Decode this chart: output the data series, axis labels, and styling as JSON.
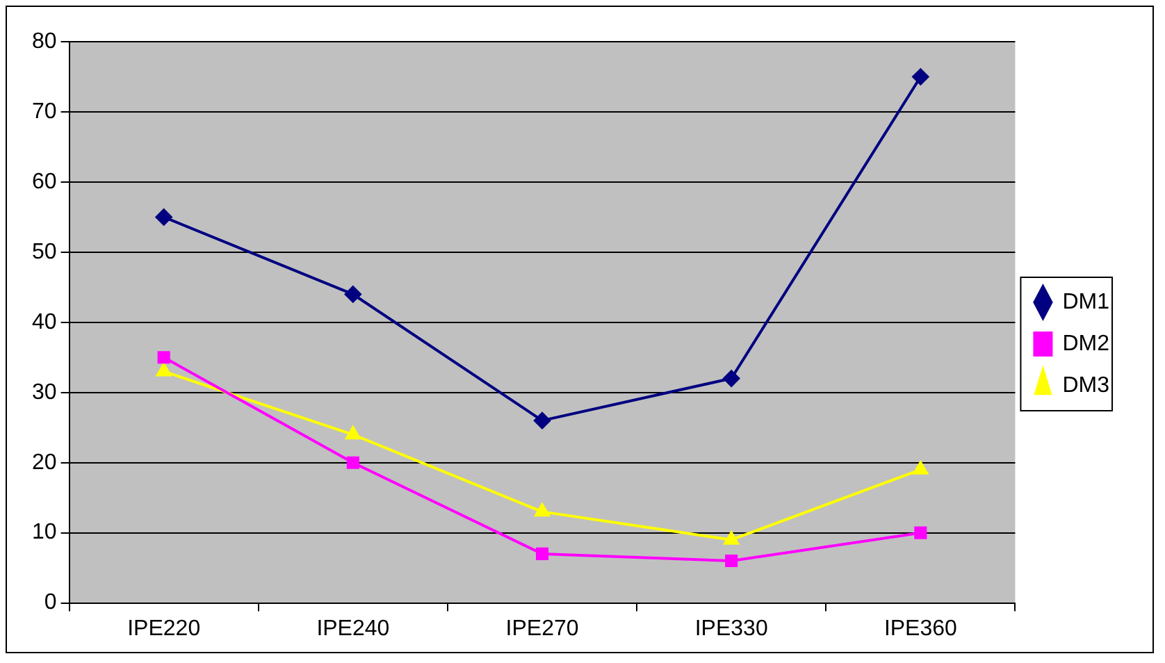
{
  "chart_data": {
    "type": "line",
    "categories": [
      "IPE220",
      "IPE240",
      "IPE270",
      "IPE330",
      "IPE360"
    ],
    "series": [
      {
        "name": "DM1",
        "color": "#000080",
        "marker": "diamond",
        "values": [
          55,
          44,
          26,
          32,
          75
        ]
      },
      {
        "name": "DM2",
        "color": "#ff00ff",
        "marker": "square",
        "values": [
          35,
          20,
          7,
          6,
          10
        ]
      },
      {
        "name": "DM3",
        "color": "#ffff00",
        "marker": "triangle",
        "values": [
          33,
          24,
          13,
          9,
          19
        ]
      }
    ],
    "ylim": [
      0,
      80
    ],
    "yticks": [
      0,
      10,
      20,
      30,
      40,
      50,
      60,
      70,
      80
    ],
    "grid": "y",
    "legend": "right",
    "line_style": "solid"
  }
}
